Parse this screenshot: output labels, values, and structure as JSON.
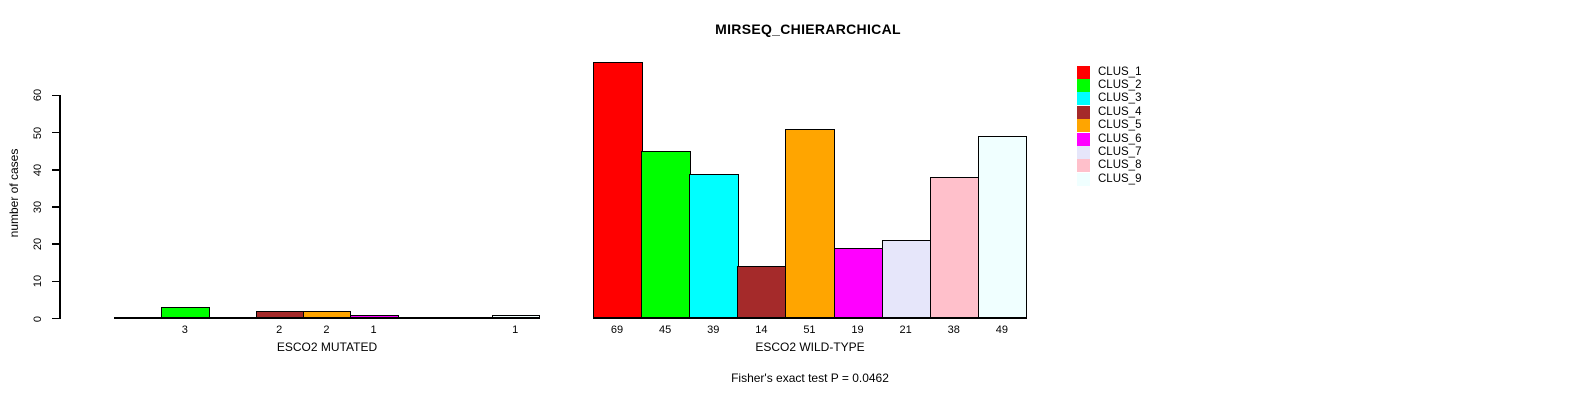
{
  "chart_data": {
    "type": "bar",
    "title": "MIRSEQ_CHIERARCHICAL",
    "ylabel": "number of cases",
    "yticks": [
      0,
      10,
      20,
      30,
      40,
      50,
      60
    ],
    "ylim": [
      0,
      69
    ],
    "grid": false,
    "legend_position": "right",
    "clusters": [
      {
        "name": "CLUS_1",
        "color": "#FF0000"
      },
      {
        "name": "CLUS_2",
        "color": "#00FF00"
      },
      {
        "name": "CLUS_3",
        "color": "#00FFFF"
      },
      {
        "name": "CLUS_4",
        "color": "#A52A2A"
      },
      {
        "name": "CLUS_5",
        "color": "#FFA500"
      },
      {
        "name": "CLUS_6",
        "color": "#FF00FF"
      },
      {
        "name": "CLUS_7",
        "color": "#E6E6FA"
      },
      {
        "name": "CLUS_8",
        "color": "#FFC0CB"
      },
      {
        "name": "CLUS_9",
        "color": "#F0FFFF"
      }
    ],
    "groups": [
      {
        "label": "ESCO2 MUTATED",
        "values": [
          0,
          3,
          0,
          2,
          2,
          1,
          0,
          0,
          1
        ],
        "bar_labels": [
          "",
          "3",
          "",
          "2",
          "2",
          "1",
          "",
          "",
          "1"
        ]
      },
      {
        "label": "ESCO2 WILD-TYPE",
        "values": [
          69,
          45,
          39,
          14,
          51,
          19,
          21,
          38,
          49
        ],
        "bar_labels": [
          "69",
          "45",
          "39",
          "14",
          "51",
          "19",
          "21",
          "38",
          "49"
        ]
      }
    ],
    "footnote": "Fisher's exact test P = 0.0462"
  }
}
